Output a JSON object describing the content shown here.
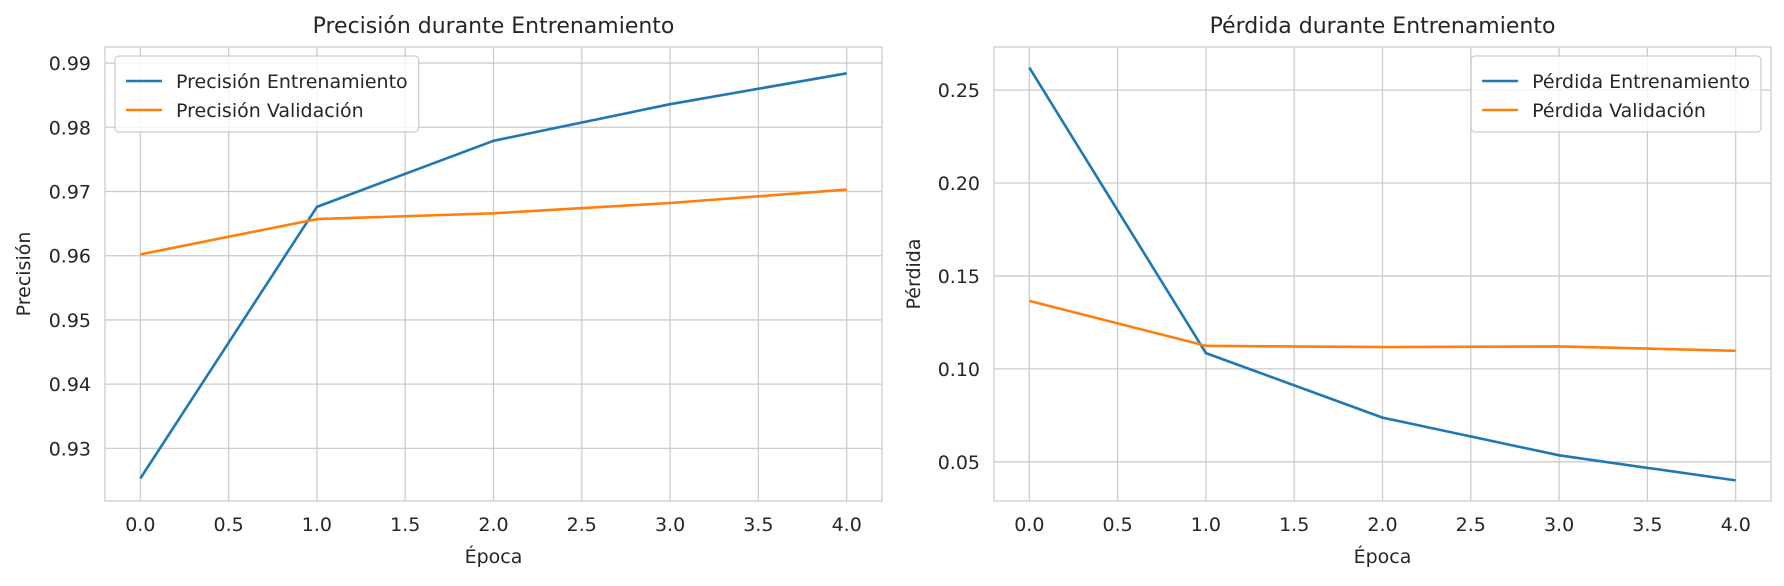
{
  "chart_data": [
    {
      "type": "line",
      "title": "Precisión durante Entrenamiento",
      "xlabel": "Época",
      "ylabel": "Precisión",
      "x": [
        0,
        1,
        2,
        3,
        4
      ],
      "xlim": [
        -0.2,
        4.2
      ],
      "ylim": [
        0.9218,
        0.9925
      ],
      "xticks": [
        "0.0",
        "0.5",
        "1.0",
        "1.5",
        "2.0",
        "2.5",
        "3.0",
        "3.5",
        "4.0"
      ],
      "yticks": [
        "0.93",
        "0.94",
        "0.95",
        "0.96",
        "0.97",
        "0.98",
        "0.99"
      ],
      "grid": true,
      "legend_position": "top-left",
      "series": [
        {
          "name": "Precisión Entrenamiento",
          "color": "#1f77b4",
          "values": [
            0.9253,
            0.9676,
            0.9779,
            0.9836,
            0.9884
          ]
        },
        {
          "name": "Precisión Validación",
          "color": "#ff7f0e",
          "values": [
            0.9602,
            0.9657,
            0.9666,
            0.9682,
            0.9703
          ]
        }
      ]
    },
    {
      "type": "line",
      "title": "Pérdida durante Entrenamiento",
      "xlabel": "Época",
      "ylabel": "Pérdida",
      "x": [
        0,
        1,
        2,
        3,
        4
      ],
      "xlim": [
        -0.2,
        4.2
      ],
      "ylim": [
        0.0289,
        0.2732
      ],
      "xticks": [
        "0.0",
        "0.5",
        "1.0",
        "1.5",
        "2.0",
        "2.5",
        "3.0",
        "3.5",
        "4.0"
      ],
      "yticks": [
        "0.05",
        "0.10",
        "0.15",
        "0.20",
        "0.25"
      ],
      "grid": true,
      "legend_position": "top-right",
      "series": [
        {
          "name": "Pérdida Entrenamiento",
          "color": "#1f77b4",
          "values": [
            0.2621,
            0.1085,
            0.0738,
            0.0535,
            0.04
          ]
        },
        {
          "name": "Pérdida Validación",
          "color": "#ff7f0e",
          "values": [
            0.1366,
            0.1124,
            0.1117,
            0.1121,
            0.1097
          ]
        }
      ]
    }
  ]
}
